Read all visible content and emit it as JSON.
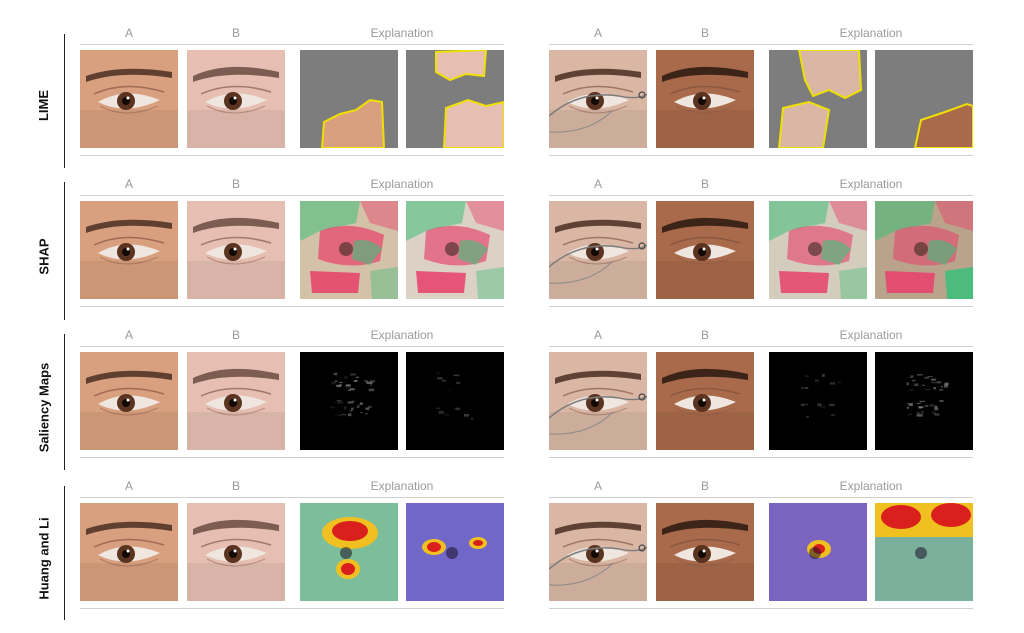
{
  "column_headers": {
    "a": "A",
    "b": "B",
    "explanation": "Explanation"
  },
  "rows": [
    {
      "label": "LIME"
    },
    {
      "label": "SHAP"
    },
    {
      "label": "Saliency Maps"
    },
    {
      "label": "Huang and Li"
    }
  ],
  "colors": {
    "skin_warm": "#d8a07e",
    "skin_pale": "#e6bfb2",
    "skin_old": "#d9b7a4",
    "skin_dark": "#a86a4a",
    "lime_mask": "#7d7d7d",
    "lime_outline": "#f0e000",
    "shap_red": "#e8406a",
    "shap_green": "#3fbf7a",
    "saliency_bg": "#000000",
    "heat_red": "#d9201c",
    "heat_blue": "#4a4ad0"
  }
}
